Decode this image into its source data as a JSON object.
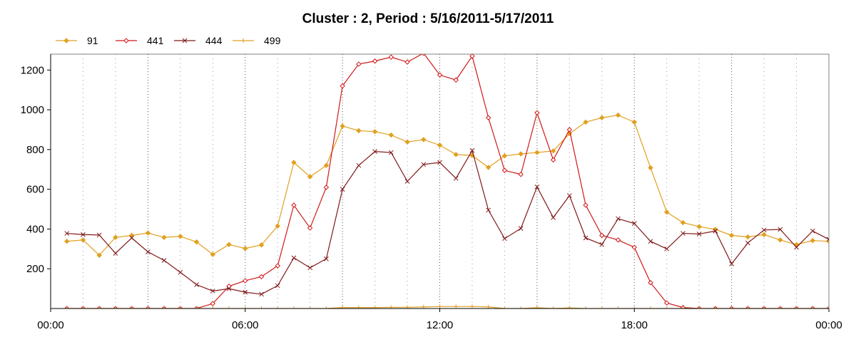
{
  "chart_data": {
    "type": "line",
    "title": "Cluster : 2, Period : 5/16/2011-5/17/2011",
    "xlabel": "",
    "ylabel": "",
    "x_tick_labels": [
      "00:00",
      "06:00",
      "12:00",
      "18:00",
      "00:00"
    ],
    "x_ticks_hours": [
      0,
      6,
      12,
      18,
      24
    ],
    "xlim": [
      0,
      24
    ],
    "ylim": [
      0,
      1280
    ],
    "y_ticks": [
      200,
      400,
      600,
      800,
      1000,
      1200
    ],
    "grid": true,
    "legend_position": "top-left",
    "x_hours": [
      0.5,
      1,
      1.5,
      2,
      2.5,
      3,
      3.5,
      4,
      4.5,
      5,
      5.5,
      6,
      6.5,
      7,
      7.5,
      8,
      8.5,
      9,
      9.5,
      10,
      10.5,
      11,
      11.5,
      12,
      12.5,
      13,
      13.5,
      14,
      14.5,
      15,
      15.5,
      16,
      16.5,
      17,
      17.5,
      18,
      18.5,
      19,
      19.5,
      20,
      20.5,
      21,
      21.5,
      22,
      22.5,
      23,
      23.5,
      24
    ],
    "series": [
      {
        "name": "91",
        "color": "#e0a020",
        "marker": "diamond",
        "values": [
          338,
          345,
          268,
          358,
          368,
          380,
          358,
          363,
          335,
          272,
          322,
          302,
          320,
          415,
          735,
          663,
          720,
          918,
          895,
          890,
          873,
          838,
          850,
          822,
          775,
          770,
          710,
          768,
          778,
          785,
          793,
          880,
          938,
          960,
          973,
          938,
          708,
          485,
          432,
          412,
          398,
          368,
          360,
          372,
          345,
          322,
          342,
          338
        ]
      },
      {
        "name": "441",
        "color": "#d01818",
        "marker": "diamond-open",
        "values": [
          0,
          0,
          0,
          0,
          0,
          0,
          0,
          0,
          0,
          25,
          112,
          140,
          160,
          215,
          520,
          405,
          610,
          1120,
          1230,
          1245,
          1265,
          1240,
          1285,
          1175,
          1150,
          1270,
          960,
          695,
          675,
          985,
          748,
          900,
          520,
          368,
          345,
          308,
          130,
          28,
          5,
          0,
          0,
          0,
          0,
          0,
          0,
          0,
          0,
          0
        ]
      },
      {
        "name": "444",
        "color": "#801818",
        "marker": "x",
        "values": [
          378,
          372,
          370,
          278,
          355,
          285,
          242,
          182,
          120,
          88,
          100,
          82,
          72,
          115,
          255,
          205,
          250,
          600,
          720,
          790,
          785,
          640,
          725,
          735,
          655,
          795,
          495,
          352,
          403,
          612,
          458,
          568,
          355,
          322,
          452,
          428,
          338,
          300,
          378,
          375,
          390,
          225,
          330,
          395,
          398,
          308,
          390,
          348
        ]
      },
      {
        "name": "499",
        "color": "#e0a020",
        "marker": "plus",
        "values": [
          0,
          0,
          0,
          0,
          0,
          0,
          0,
          0,
          0,
          0,
          0,
          0,
          0,
          0,
          0,
          0,
          0,
          5,
          5,
          5,
          6,
          6,
          8,
          10,
          10,
          10,
          8,
          0,
          0,
          4,
          0,
          3,
          0,
          0,
          0,
          0,
          0,
          0,
          0,
          0,
          0,
          0,
          0,
          0,
          0,
          0,
          0,
          0
        ]
      }
    ]
  }
}
